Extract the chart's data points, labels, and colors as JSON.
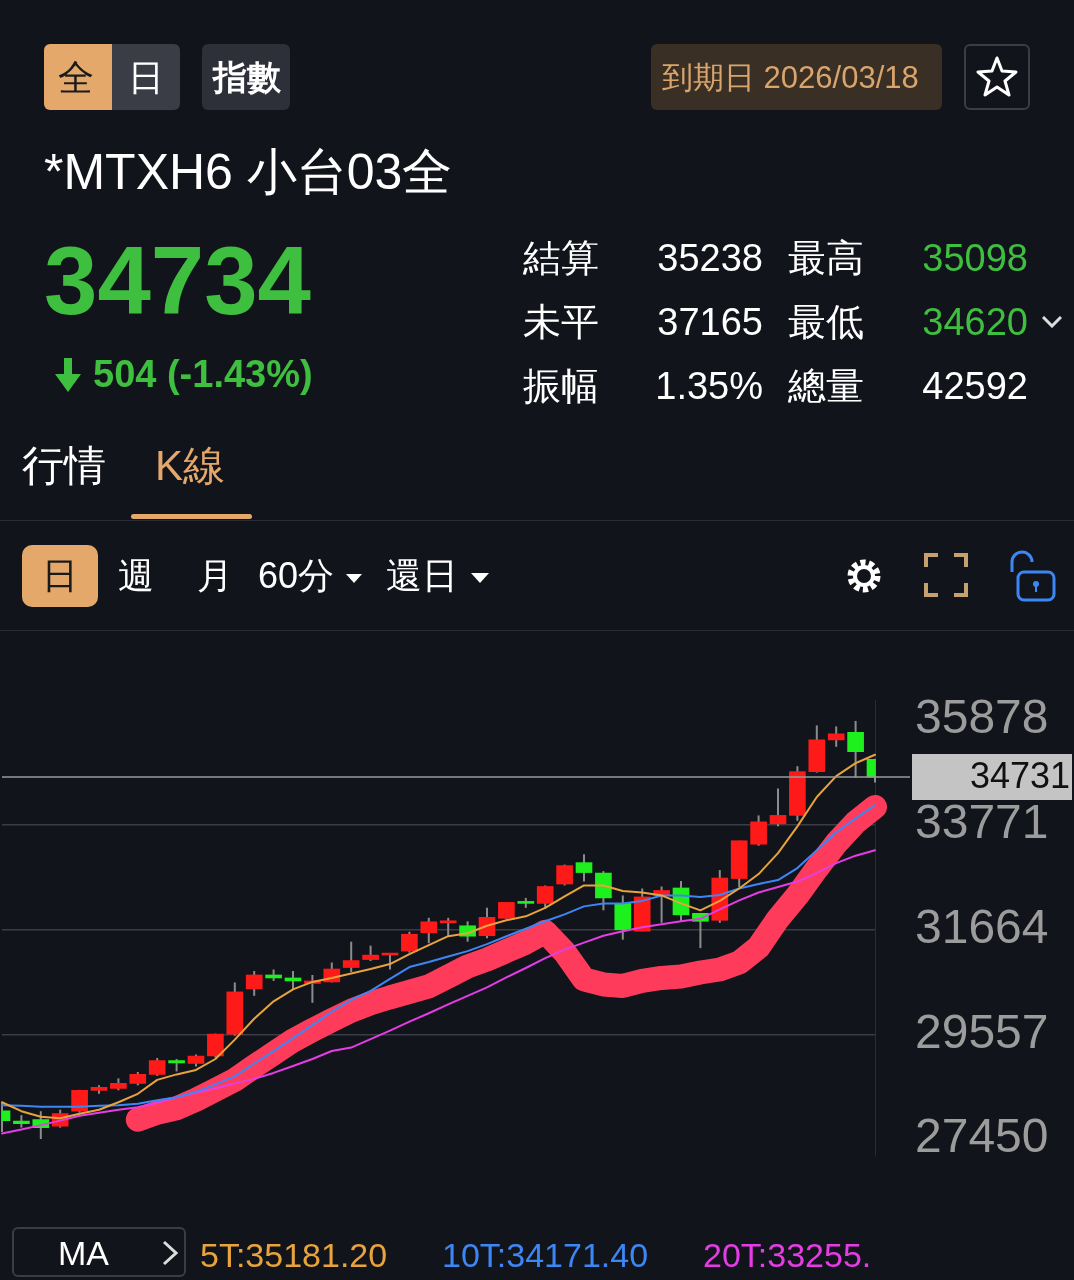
{
  "chart_data": {
    "type": "candlestick",
    "title": "*MTXH6 小台03全",
    "categories": [
      null,
      null,
      null,
      null,
      null,
      null,
      null,
      null,
      null,
      null,
      null,
      null,
      null,
      null,
      null,
      null,
      null,
      null,
      null,
      null,
      null,
      null,
      null,
      null,
      null,
      null,
      null,
      null,
      null,
      null,
      null,
      null,
      null,
      null,
      null,
      null,
      null,
      null,
      null,
      null,
      null,
      null,
      null,
      null,
      null,
      null
    ],
    "ohlc": [
      [
        28020,
        28190,
        27590,
        27820
      ],
      [
        27810,
        27930,
        27680,
        27760
      ],
      [
        27840,
        28010,
        27450,
        27680
      ],
      [
        27710,
        28040,
        27680,
        27960
      ],
      [
        28010,
        28440,
        27980,
        28430
      ],
      [
        28430,
        28530,
        28360,
        28490
      ],
      [
        28470,
        28670,
        28430,
        28570
      ],
      [
        28570,
        28800,
        28530,
        28750
      ],
      [
        28750,
        29080,
        28720,
        29030
      ],
      [
        29030,
        29060,
        28810,
        28980
      ],
      [
        28970,
        29150,
        28910,
        29120
      ],
      [
        29120,
        29570,
        29090,
        29560
      ],
      [
        29560,
        30600,
        29530,
        30410
      ],
      [
        30470,
        30830,
        30330,
        30750
      ],
      [
        30750,
        30860,
        30630,
        30690
      ],
      [
        30690,
        30830,
        30470,
        30630
      ],
      [
        30580,
        30750,
        30190,
        30630
      ],
      [
        30610,
        31000,
        30600,
        30870
      ],
      [
        30900,
        31420,
        30810,
        31040
      ],
      [
        31060,
        31340,
        31030,
        31150
      ],
      [
        31150,
        31170,
        30860,
        31170
      ],
      [
        31230,
        31620,
        31200,
        31570
      ],
      [
        31600,
        31900,
        31390,
        31820
      ],
      [
        31800,
        31900,
        31530,
        31830
      ],
      [
        31740,
        31830,
        31420,
        31530
      ],
      [
        31540,
        32100,
        31490,
        31910
      ],
      [
        31890,
        32210,
        31880,
        32210
      ],
      [
        32220,
        32300,
        32100,
        32190
      ],
      [
        32190,
        32550,
        32080,
        32530
      ],
      [
        32580,
        32970,
        32550,
        32950
      ],
      [
        33010,
        33180,
        32630,
        32810
      ],
      [
        32800,
        32840,
        32050,
        32300
      ],
      [
        32190,
        32350,
        31460,
        31660
      ],
      [
        31630,
        32490,
        31630,
        32320
      ],
      [
        32350,
        32530,
        31800,
        32450
      ],
      [
        32500,
        32640,
        31830,
        31960
      ],
      [
        31990,
        31990,
        31290,
        31830
      ],
      [
        31850,
        32860,
        31800,
        32700
      ],
      [
        32690,
        33450,
        32520,
        33450
      ],
      [
        33380,
        33960,
        33350,
        33830
      ],
      [
        33790,
        34500,
        33740,
        33960
      ],
      [
        33960,
        34950,
        33850,
        34840
      ],
      [
        34840,
        35770,
        34820,
        35480
      ],
      [
        35480,
        35750,
        35340,
        35600
      ],
      [
        35630,
        35860,
        34720,
        35240
      ],
      [
        35090,
        35100,
        34620,
        34730
      ]
    ],
    "series": [
      {
        "type": "line",
        "name": "5T:35181.20",
        "color": "#e8a33c",
        "values": [
          28190,
          28010,
          27900,
          27870,
          27960,
          28040,
          28190,
          28360,
          28640,
          28750,
          28840,
          29060,
          29450,
          29870,
          30220,
          30460,
          30610,
          30690,
          30780,
          30870,
          30970,
          31170,
          31350,
          31530,
          31590,
          31740,
          31850,
          31930,
          32100,
          32330,
          32550,
          32550,
          32440,
          32410,
          32350,
          32190,
          32050,
          32240,
          32490,
          32780,
          33200,
          33740,
          34330,
          34750,
          35010,
          35180
        ]
      },
      {
        "type": "line",
        "name": "10T:34171.40",
        "color": "#3d86f5",
        "values": [
          28130,
          28120,
          28100,
          28100,
          28100,
          28120,
          28130,
          28160,
          28230,
          28290,
          28400,
          28550,
          28710,
          28970,
          29220,
          29480,
          29740,
          30010,
          30250,
          30430,
          30670,
          30910,
          31010,
          31120,
          31230,
          31370,
          31530,
          31680,
          31830,
          31970,
          32130,
          32190,
          32190,
          32240,
          32350,
          32350,
          32320,
          32360,
          32490,
          32580,
          32660,
          32900,
          33260,
          33620,
          33900,
          34170
        ]
      },
      {
        "type": "line",
        "name": "20T:33255.",
        "color": "#e63ce6",
        "values": [
          27560,
          27640,
          27730,
          27820,
          27920,
          27980,
          28040,
          28090,
          28180,
          28290,
          28380,
          28470,
          28570,
          28660,
          28780,
          28920,
          29060,
          29220,
          29290,
          29460,
          29630,
          29810,
          29980,
          30160,
          30330,
          30500,
          30700,
          30890,
          31090,
          31260,
          31400,
          31540,
          31630,
          31710,
          31770,
          31830,
          31880,
          32070,
          32250,
          32410,
          32520,
          32630,
          32800,
          33000,
          33150,
          33260
        ]
      },
      {
        "type": "line",
        "color": "#ff3b5c",
        "values": [
          null,
          null,
          null,
          null,
          null,
          null,
          null,
          27840,
          27980,
          28070,
          28240,
          28440,
          28640,
          28910,
          29170,
          29430,
          29640,
          29840,
          30030,
          30180,
          30300,
          30410,
          30520,
          30720,
          30920,
          31060,
          31230,
          31400,
          31620,
          31210,
          30660,
          30560,
          30530,
          30630,
          30690,
          30720,
          30800,
          30860,
          31000,
          31310,
          31880,
          32350,
          32890,
          33400,
          33820,
          34130
        ]
      }
    ],
    "ylim": [
      27125,
      36265
    ],
    "yticks": [
      27450,
      29557,
      31664,
      33771,
      35878
    ],
    "grid": "y",
    "tick_labels": "y",
    "legend": "bottom",
    "marker": "none",
    "ref_lines": [
      {
        "axis": "y",
        "value": 34731,
        "label": "34731",
        "color": "#9a9a9a"
      }
    ],
    "annotations": [
      "全",
      "日",
      "指數",
      "到期日 2026/03/18",
      "34734",
      "504 (-1.43%)",
      "結算",
      "35238",
      "最高",
      "35098",
      "未平",
      "37165",
      "最低",
      "34620",
      "振幅",
      "1.35%",
      "總量",
      "42592",
      "行情",
      "K線",
      "日",
      "週",
      "月",
      "60分",
      "還日",
      "MA"
    ]
  }
}
